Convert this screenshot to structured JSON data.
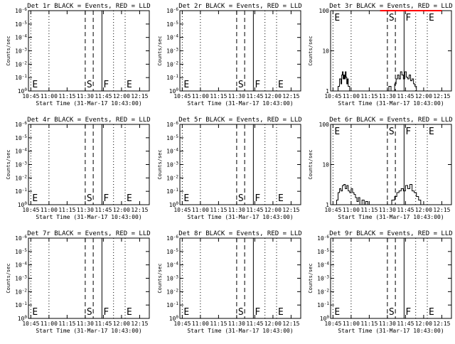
{
  "x_tick_labels": [
    "10:45",
    "11:00",
    "11:15",
    "11:30",
    "11:45",
    "12:00",
    "12:15"
  ],
  "x_ticks_hours": [
    10.75,
    11.0,
    11.25,
    11.5,
    11.75,
    12.0,
    12.25
  ],
  "xlim_hours": [
    10.717,
    12.383
  ],
  "xlabel": "Start Time (31-Mar-17 10:43:00)",
  "ylabel": "Counts/sec",
  "markers": [
    {
      "label": "E",
      "t": 10.75,
      "style": "dotted"
    },
    {
      "label": "",
      "t": 11.0,
      "style": "dotted"
    },
    {
      "label": "S",
      "t": 11.5,
      "style": "dashed"
    },
    {
      "label": "",
      "t": 11.61,
      "style": "dashed"
    },
    {
      "label": "F",
      "t": 11.73,
      "style": "solid"
    },
    {
      "label": "",
      "t": 11.89,
      "style": "dotted"
    },
    {
      "label": "E",
      "t": 12.05,
      "style": "dotted"
    }
  ],
  "colors": {
    "events": "#000000",
    "lld": "#ff0000"
  },
  "chart_data": [
    {
      "type": "line",
      "title": "Det 1r BLACK = Events, RED = LLD",
      "xlabel": "Start Time (31-Mar-17 10:43:00)",
      "ylabel": "Counts/sec",
      "yscale": "log",
      "ylim": [
        1,
        1e-06
      ],
      "yticks": [
        "10^0",
        "10^-1",
        "10^-2",
        "10^-3",
        "10^-4",
        "10^-5",
        "10^-6"
      ],
      "series": []
    },
    {
      "type": "line",
      "title": "Det 2r BLACK = Events, RED = LLD",
      "xlabel": "Start Time (31-Mar-17 10:43:00)",
      "ylabel": "Counts/sec",
      "yscale": "log",
      "ylim": [
        1,
        1e-06
      ],
      "yticks": [
        "10^0",
        "10^-1",
        "10^-2",
        "10^-3",
        "10^-4",
        "10^-5",
        "10^-6"
      ],
      "series": []
    },
    {
      "type": "line",
      "title": "Det 3r BLACK = Events, RED = LLD",
      "xlabel": "Start Time (31-Mar-17 10:43:00)",
      "ylabel": "Counts/sec",
      "yscale": "log",
      "ylim": [
        1,
        100
      ],
      "yticks": [
        "1",
        "10",
        "100"
      ],
      "series": [
        {
          "color": "#000000",
          "x": [
            10.72,
            10.78,
            10.8,
            10.82,
            10.84,
            10.86,
            10.87,
            10.88,
            10.89,
            10.9,
            10.91,
            10.92,
            10.93,
            10.94,
            10.95,
            10.96,
            10.98,
            11.0,
            11.05,
            11.1,
            11.15,
            11.18,
            11.22,
            11.25,
            11.3,
            11.33,
            11.38,
            11.42,
            11.46,
            11.5,
            11.52,
            11.55,
            11.58,
            11.6,
            11.62,
            11.64,
            11.66,
            11.68,
            11.7,
            11.72,
            11.74,
            11.76,
            11.78,
            11.8,
            11.82,
            11.84,
            11.86,
            11.88,
            11.9,
            11.92,
            11.95,
            12.0,
            12.05,
            12.1,
            12.15,
            12.2,
            12.25,
            12.3,
            12.38
          ],
          "y": [
            1,
            1,
            1,
            1.3,
            2,
            1.5,
            2.5,
            3,
            2,
            2.5,
            2,
            3,
            2.2,
            1.5,
            2,
            1.3,
            1,
            1,
            1,
            1,
            1,
            1,
            1,
            1,
            1,
            1,
            1,
            1,
            1,
            1,
            1.3,
            1,
            1,
            1.5,
            2,
            2.5,
            2,
            3,
            2.5,
            2,
            3,
            2.2,
            2,
            2.5,
            1.8,
            2,
            1.5,
            1.3,
            1,
            1,
            1,
            1,
            1,
            1,
            1,
            1,
            1,
            1,
            1
          ]
        },
        {
          "color": "#ff0000",
          "x": [
            11.4,
            11.45,
            11.9,
            11.95,
            12.08,
            12.12,
            12.2,
            12.25
          ],
          "y": [
            100,
            100,
            100,
            100,
            100,
            100,
            100,
            100
          ]
        }
      ]
    },
    {
      "type": "line",
      "title": "Det 4r BLACK = Events, RED = LLD",
      "xlabel": "Start Time (31-Mar-17 10:43:00)",
      "ylabel": "Counts/sec",
      "yscale": "log",
      "ylim": [
        1,
        1e-06
      ],
      "yticks": [
        "10^0",
        "10^-1",
        "10^-2",
        "10^-3",
        "10^-4",
        "10^-5",
        "10^-6"
      ],
      "series": []
    },
    {
      "type": "line",
      "title": "Det 5r BLACK = Events, RED = LLD",
      "xlabel": "Start Time (31-Mar-17 10:43:00)",
      "ylabel": "Counts/sec",
      "yscale": "log",
      "ylim": [
        1,
        1e-06
      ],
      "yticks": [
        "10^0",
        "10^-1",
        "10^-2",
        "10^-3",
        "10^-4",
        "10^-5",
        "10^-6"
      ],
      "series": []
    },
    {
      "type": "line",
      "title": "Det 6r BLACK = Events, RED = LLD",
      "xlabel": "Start Time (31-Mar-17 10:43:00)",
      "ylabel": "Counts/sec",
      "yscale": "log",
      "ylim": [
        1,
        100
      ],
      "yticks": [
        "1",
        "10",
        "100"
      ],
      "series": [
        {
          "color": "#000000",
          "x": [
            10.72,
            10.78,
            10.8,
            10.82,
            10.84,
            10.86,
            10.88,
            10.9,
            10.92,
            10.94,
            10.96,
            10.98,
            11.0,
            11.02,
            11.04,
            11.06,
            11.08,
            11.1,
            11.12,
            11.15,
            11.18,
            11.2,
            11.23,
            11.26,
            11.3,
            11.33,
            11.36,
            11.4,
            11.44,
            11.48,
            11.52,
            11.56,
            11.6,
            11.63,
            11.66,
            11.69,
            11.72,
            11.75,
            11.78,
            11.81,
            11.84,
            11.87,
            11.9,
            11.93,
            11.96,
            12.0,
            12.05,
            12.1,
            12.15,
            12.2,
            12.25,
            12.3,
            12.38
          ],
          "y": [
            1,
            1,
            1.3,
            2,
            2.5,
            2.2,
            3,
            3.2,
            2.5,
            3,
            2.2,
            2,
            2.5,
            2,
            1.8,
            1.5,
            1.2,
            1.5,
            1,
            1.3,
            1,
            1.2,
            1,
            1,
            1,
            1,
            1,
            1,
            1,
            1,
            1,
            1.3,
            1.6,
            2,
            2.2,
            2.5,
            2.2,
            3,
            2.5,
            3.2,
            2.2,
            2,
            1.6,
            1.3,
            1,
            1,
            1,
            1,
            1,
            1,
            1,
            1,
            1
          ]
        },
        {
          "color": "#ff0000",
          "x": [],
          "y": []
        }
      ]
    },
    {
      "type": "line",
      "title": "Det 7r BLACK = Events, RED = LLD",
      "xlabel": "Start Time (31-Mar-17 10:43:00)",
      "ylabel": "Counts/sec",
      "yscale": "log",
      "ylim": [
        1,
        1e-06
      ],
      "yticks": [
        "10^0",
        "10^-1",
        "10^-2",
        "10^-3",
        "10^-4",
        "10^-5",
        "10^-6"
      ],
      "series": []
    },
    {
      "type": "line",
      "title": "Det 8r BLACK = Events, RED = LLD",
      "xlabel": "Start Time (31-Mar-17 10:43:00)",
      "ylabel": "Counts/sec",
      "yscale": "log",
      "ylim": [
        1,
        1e-06
      ],
      "yticks": [
        "10^0",
        "10^-1",
        "10^-2",
        "10^-3",
        "10^-4",
        "10^-5",
        "10^-6"
      ],
      "series": []
    },
    {
      "type": "line",
      "title": "Det 9r BLACK = Events, RED = LLD",
      "xlabel": "Start Time (31-Mar-17 10:43:00)",
      "ylabel": "Counts/sec",
      "yscale": "log",
      "ylim": [
        1,
        1e-06
      ],
      "yticks": [
        "10^0",
        "10^-1",
        "10^-2",
        "10^-3",
        "10^-4",
        "10^-5",
        "10^-6"
      ],
      "series": []
    }
  ]
}
